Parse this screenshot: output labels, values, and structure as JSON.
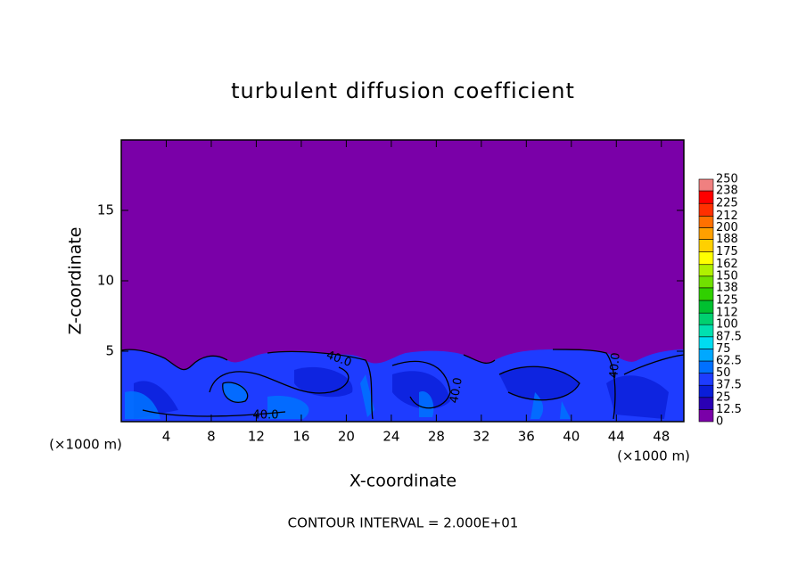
{
  "chart_data": {
    "type": "contour",
    "title": "turbulent diffusion coefficient",
    "xlabel": "X-coordinate",
    "ylabel": "Z-coordinate",
    "x_unit": "(×1000 m)",
    "footnote": "CONTOUR INTERVAL = 2.000E+01",
    "xlim": [
      0,
      50
    ],
    "ylim": [
      0,
      20
    ],
    "xticks": [
      4,
      8,
      12,
      16,
      20,
      24,
      28,
      32,
      36,
      40,
      44,
      48
    ],
    "yticks": [
      5,
      10,
      15
    ],
    "colorbar": {
      "levels": [
        0,
        12.5,
        25,
        37.5,
        50,
        62.5,
        75,
        87.5,
        100,
        112,
        125,
        138,
        150,
        162,
        175,
        188,
        200,
        212,
        225,
        238,
        250
      ],
      "colors": [
        "#7a00a8",
        "#2a00b4",
        "#0a1ed8",
        "#1e3cff",
        "#0070ff",
        "#00a8ff",
        "#00dcf0",
        "#00e0b0",
        "#00d070",
        "#00c030",
        "#30d000",
        "#70e000",
        "#b0f000",
        "#ffff00",
        "#ffd000",
        "#ffa000",
        "#ff7000",
        "#ff3000",
        "#ff0000",
        "#f08080"
      ]
    },
    "contour_labels": [
      "40.0",
      "40.0",
      "40.0",
      "40.0"
    ]
  }
}
